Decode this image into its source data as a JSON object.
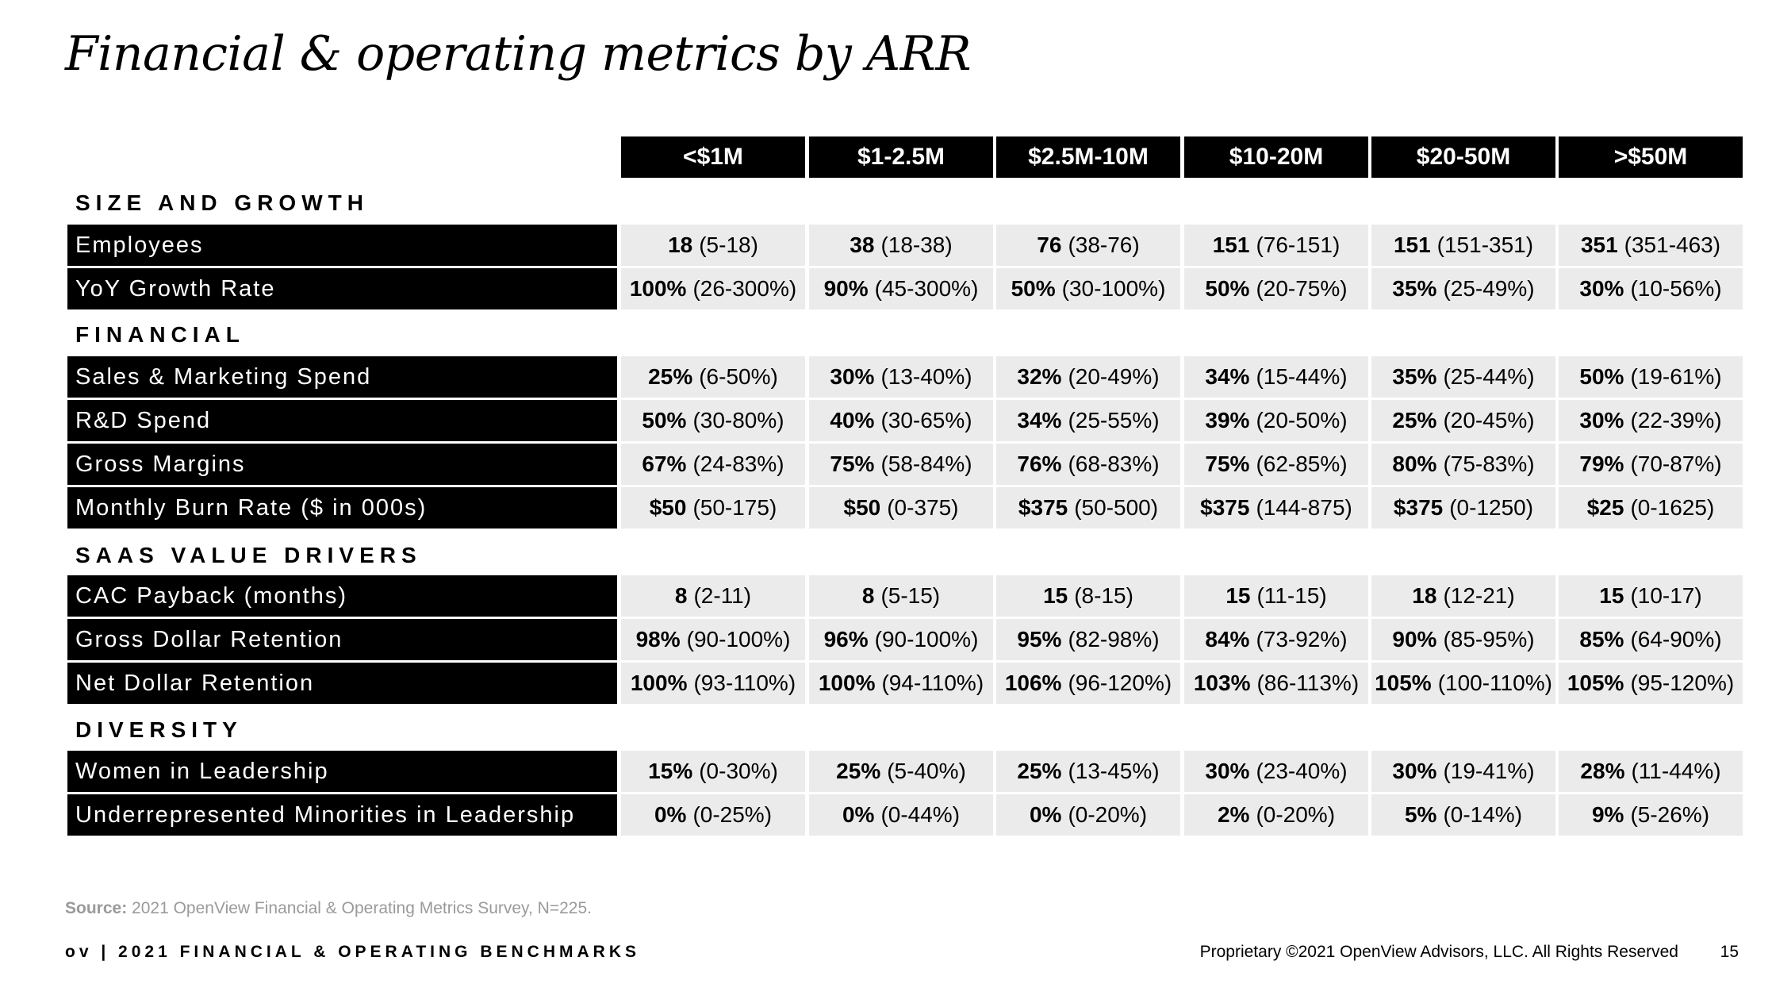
{
  "title": "Financial & operating metrics by ARR",
  "columns": [
    "<$1M",
    "$1-2.5M",
    "$2.5M-10M",
    "$10-20M",
    "$20-50M",
    ">$50M"
  ],
  "sections": [
    {
      "name": "SIZE AND GROWTH",
      "rows": [
        {
          "label": "Employees",
          "cells": [
            {
              "value": "18",
              "range": "(5-18)"
            },
            {
              "value": "38",
              "range": "(18-38)"
            },
            {
              "value": "76",
              "range": "(38-76)"
            },
            {
              "value": "151",
              "range": "(76-151)"
            },
            {
              "value": "151",
              "range": "(151-351)"
            },
            {
              "value": "351",
              "range": "(351-463)"
            }
          ]
        },
        {
          "label": "YoY Growth Rate",
          "cells": [
            {
              "value": "100%",
              "range": "(26-300%)"
            },
            {
              "value": "90%",
              "range": "(45-300%)"
            },
            {
              "value": "50%",
              "range": "(30-100%)"
            },
            {
              "value": "50%",
              "range": "(20-75%)"
            },
            {
              "value": "35%",
              "range": "(25-49%)"
            },
            {
              "value": "30%",
              "range": "(10-56%)"
            }
          ]
        }
      ]
    },
    {
      "name": "FINANCIAL",
      "rows": [
        {
          "label": "Sales & Marketing Spend",
          "cells": [
            {
              "value": "25%",
              "range": "(6-50%)"
            },
            {
              "value": "30%",
              "range": "(13-40%)"
            },
            {
              "value": "32%",
              "range": "(20-49%)"
            },
            {
              "value": "34%",
              "range": "(15-44%)"
            },
            {
              "value": "35%",
              "range": "(25-44%)"
            },
            {
              "value": "50%",
              "range": "(19-61%)"
            }
          ]
        },
        {
          "label": "R&D Spend",
          "cells": [
            {
              "value": "50%",
              "range": "(30-80%)"
            },
            {
              "value": "40%",
              "range": "(30-65%)"
            },
            {
              "value": "34%",
              "range": "(25-55%)"
            },
            {
              "value": "39%",
              "range": "(20-50%)"
            },
            {
              "value": "25%",
              "range": "(20-45%)"
            },
            {
              "value": "30%",
              "range": "(22-39%)"
            }
          ]
        },
        {
          "label": "Gross Margins",
          "cells": [
            {
              "value": "67%",
              "range": "(24-83%)"
            },
            {
              "value": "75%",
              "range": "(58-84%)"
            },
            {
              "value": "76%",
              "range": "(68-83%)"
            },
            {
              "value": "75%",
              "range": "(62-85%)"
            },
            {
              "value": "80%",
              "range": "(75-83%)"
            },
            {
              "value": "79%",
              "range": "(70-87%)"
            }
          ]
        },
        {
          "label": "Monthly Burn Rate ($ in 000s)",
          "cells": [
            {
              "value": "$50",
              "range": "(50-175)"
            },
            {
              "value": "$50",
              "range": "(0-375)"
            },
            {
              "value": "$375",
              "range": "(50-500)"
            },
            {
              "value": "$375",
              "range": "(144-875)"
            },
            {
              "value": "$375",
              "range": "(0-1250)"
            },
            {
              "value": "$25",
              "range": "(0-1625)"
            }
          ]
        }
      ]
    },
    {
      "name": "SAAS VALUE DRIVERS",
      "rows": [
        {
          "label": "CAC Payback (months)",
          "cells": [
            {
              "value": "8",
              "range": "(2-11)"
            },
            {
              "value": "8",
              "range": "(5-15)"
            },
            {
              "value": "15",
              "range": "(8-15)"
            },
            {
              "value": "15",
              "range": "(11-15)"
            },
            {
              "value": "18",
              "range": "(12-21)"
            },
            {
              "value": "15",
              "range": "(10-17)"
            }
          ]
        },
        {
          "label": "Gross Dollar Retention",
          "cells": [
            {
              "value": "98%",
              "range": "(90-100%)"
            },
            {
              "value": "96%",
              "range": "(90-100%)"
            },
            {
              "value": "95%",
              "range": "(82-98%)"
            },
            {
              "value": "84%",
              "range": "(73-92%)"
            },
            {
              "value": "90%",
              "range": "(85-95%)"
            },
            {
              "value": "85%",
              "range": "(64-90%)"
            }
          ]
        },
        {
          "label": "Net Dollar Retention",
          "cells": [
            {
              "value": "100%",
              "range": "(93-110%)"
            },
            {
              "value": "100%",
              "range": "(94-110%)"
            },
            {
              "value": "106%",
              "range": "(96-120%)"
            },
            {
              "value": "103%",
              "range": "(86-113%)"
            },
            {
              "value": "105%",
              "range": "(100-110%)"
            },
            {
              "value": "105%",
              "range": "(95-120%)"
            }
          ]
        }
      ]
    },
    {
      "name": "DIVERSITY",
      "rows": [
        {
          "label": "Women in Leadership",
          "cells": [
            {
              "value": "15%",
              "range": "(0-30%)"
            },
            {
              "value": "25%",
              "range": "(5-40%)"
            },
            {
              "value": "25%",
              "range": "(13-45%)"
            },
            {
              "value": "30%",
              "range": "(23-40%)"
            },
            {
              "value": "30%",
              "range": "(19-41%)"
            },
            {
              "value": "28%",
              "range": "(11-44%)"
            }
          ]
        },
        {
          "label": "Underrepresented Minorities in Leadership",
          "cells": [
            {
              "value": "0%",
              "range": "(0-25%)"
            },
            {
              "value": "0%",
              "range": "(0-44%)"
            },
            {
              "value": "0%",
              "range": "(0-20%)"
            },
            {
              "value": "2%",
              "range": "(0-20%)"
            },
            {
              "value": "5%",
              "range": "(0-14%)"
            },
            {
              "value": "9%",
              "range": "(5-26%)"
            }
          ]
        }
      ]
    }
  ],
  "source": {
    "label": "Source:",
    "text": "2021 OpenView Financial & Operating Metrics Survey, N=225."
  },
  "footer": {
    "left": "ov | 2021 FINANCIAL & OPERATING BENCHMARKS",
    "right": "Proprietary ©2021 OpenView Advisors, LLC. All Rights Reserved",
    "page": "15"
  }
}
